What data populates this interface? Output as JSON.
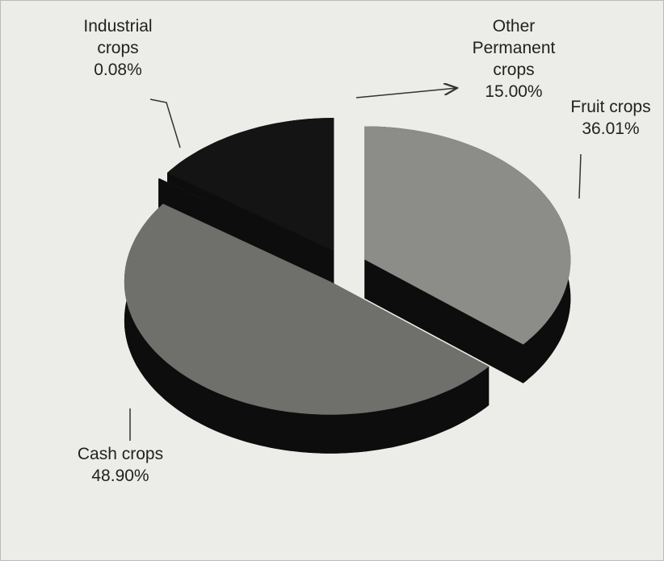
{
  "chart_data": {
    "type": "pie",
    "categories": [
      "Fruit crops",
      "Cash crops",
      "Industrial crops",
      "Other Permanent crops"
    ],
    "values": [
      36.01,
      48.9,
      0.08,
      15
    ],
    "value_labels": [
      "36.01%",
      "48.90%",
      "0.08%",
      "15.00%"
    ],
    "colors": [
      "#8c8c88",
      "#6f6f6b",
      "#141414",
      "#141414"
    ]
  }
}
